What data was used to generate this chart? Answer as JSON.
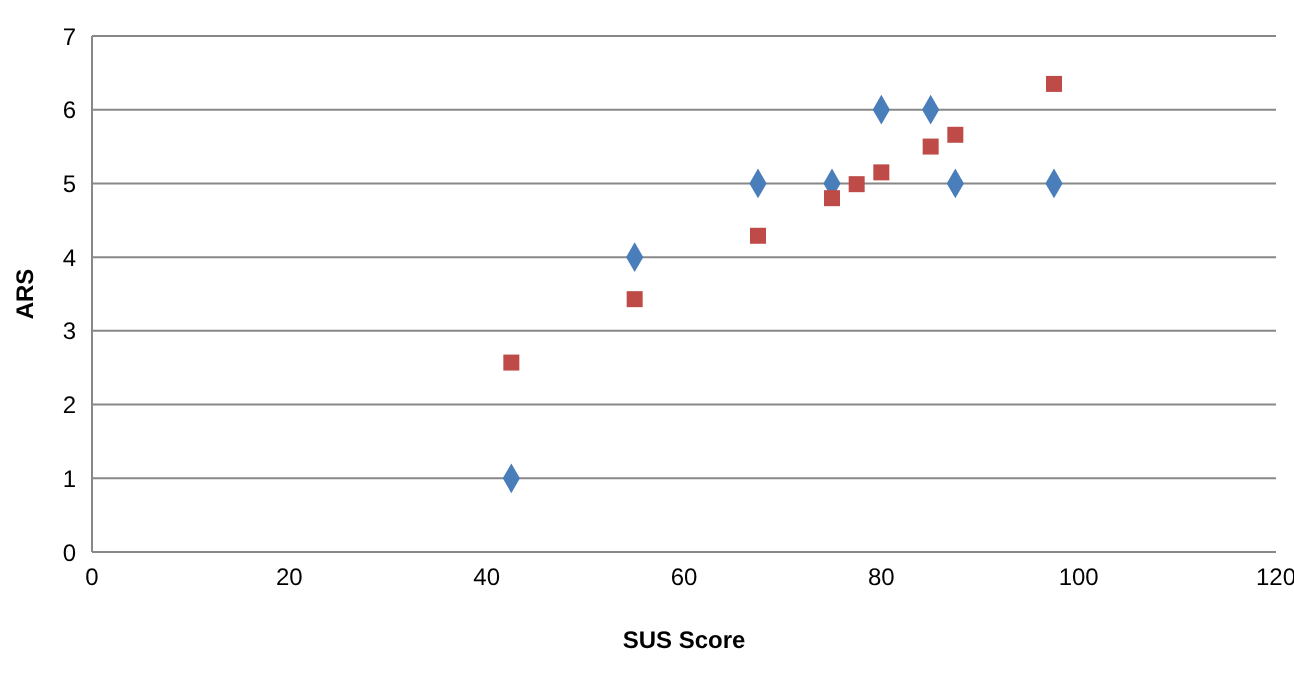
{
  "chart_data": {
    "type": "scatter",
    "xlabel": "SUS Score",
    "ylabel": "ARS",
    "xlim": [
      0,
      120
    ],
    "xticks": [
      0,
      20,
      40,
      60,
      80,
      100,
      120
    ],
    "ylim": [
      0,
      7
    ],
    "yticks": [
      0,
      1,
      2,
      3,
      4,
      5,
      6,
      7
    ],
    "grid": "y",
    "series": [
      {
        "color": "#4a7ebb",
        "marker": "diamond",
        "x": [
          42.5,
          55,
          67.5,
          75,
          80,
          85,
          87.5,
          97.5
        ],
        "values": [
          1,
          4,
          5,
          5,
          6,
          6,
          5,
          5
        ]
      },
      {
        "color": "#be4b48",
        "marker": "square",
        "x": [
          42.5,
          55,
          67.5,
          75,
          77.5,
          80,
          85,
          87.5,
          97.5
        ],
        "values": [
          2.57,
          3.43,
          4.29,
          4.8,
          4.99,
          5.15,
          5.5,
          5.66,
          6.35
        ]
      }
    ]
  }
}
